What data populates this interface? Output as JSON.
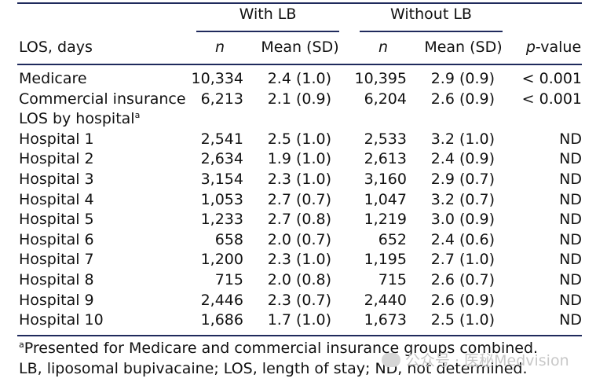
{
  "header": {
    "group_with": "With LB",
    "group_without": "Without LB",
    "row_label": "LOS, days",
    "col_n": "n",
    "col_mean": "Mean (SD)",
    "col_p_italic": "p",
    "col_p_rest": "-value"
  },
  "rows": [
    {
      "label": "Medicare",
      "n1": "10,334",
      "m1": "2.4 (1.0)",
      "n2": "10,395",
      "m2": "2.9 (0.9)",
      "p": "< 0.001"
    },
    {
      "label": "Commercial insurance",
      "n1": "6,213",
      "m1": "2.1 (0.9)",
      "n2": "6,204",
      "m2": "2.6 (0.9)",
      "p": "< 0.001"
    },
    {
      "label": "LOS by hospital",
      "sup": "a",
      "n1": "",
      "m1": "",
      "n2": "",
      "m2": "",
      "p": ""
    },
    {
      "label": "Hospital 1",
      "n1": "2,541",
      "m1": "2.5 (1.0)",
      "n2": "2,533",
      "m2": "3.2 (1.0)",
      "p": "ND"
    },
    {
      "label": "Hospital 2",
      "n1": "2,634",
      "m1": "1.9 (1.0)",
      "n2": "2,613",
      "m2": "2.4 (0.9)",
      "p": "ND"
    },
    {
      "label": "Hospital 3",
      "n1": "3,154",
      "m1": "2.3 (1.0)",
      "n2": "3,160",
      "m2": "2.9 (0.7)",
      "p": "ND"
    },
    {
      "label": "Hospital 4",
      "n1": "1,053",
      "m1": "2.7 (0.7)",
      "n2": "1,047",
      "m2": "3.2 (0.7)",
      "p": "ND"
    },
    {
      "label": "Hospital 5",
      "n1": "1,233",
      "m1": "2.7 (0.8)",
      "n2": "1,219",
      "m2": "3.0 (0.9)",
      "p": "ND"
    },
    {
      "label": "Hospital 6",
      "n1": "658",
      "m1": "2.0 (0.7)",
      "n2": "652",
      "m2": "2.4 (0.6)",
      "p": "ND"
    },
    {
      "label": "Hospital 7",
      "n1": "1,200",
      "m1": "2.3 (1.0)",
      "n2": "1,195",
      "m2": "2.7 (1.0)",
      "p": "ND"
    },
    {
      "label": "Hospital 8",
      "n1": "715",
      "m1": "2.0 (0.8)",
      "n2": "715",
      "m2": "2.6 (0.7)",
      "p": "ND"
    },
    {
      "label": "Hospital 9",
      "n1": "2,446",
      "m1": "2.3 (0.7)",
      "n2": "2,440",
      "m2": "2.6 (0.9)",
      "p": "ND"
    },
    {
      "label": "Hospital 10",
      "n1": "1,686",
      "m1": "1.7 (1.0)",
      "n2": "1,673",
      "m2": "2.5 (1.0)",
      "p": "ND"
    }
  ],
  "footnotes": {
    "note_a_sup": "a",
    "note_a_text": "Presented for Medicare and commercial insurance groups combined.",
    "abbrev": "LB, liposomal bupivacaine; LOS, length of stay; ND, not determined."
  },
  "watermark": "公众号 · 医秘Medvision"
}
